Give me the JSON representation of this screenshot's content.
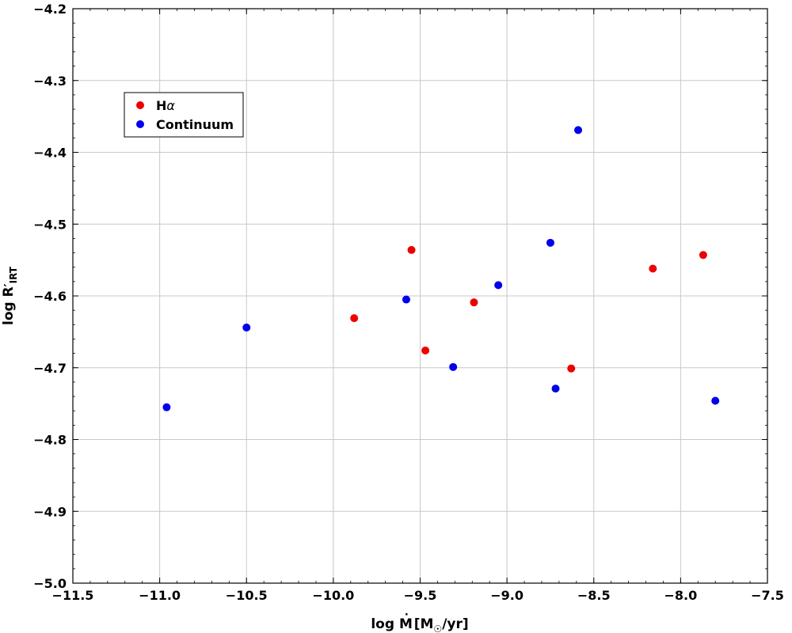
{
  "chart_data": {
    "type": "scatter",
    "xlabel": "log Ṁ [M☉/yr]",
    "ylabel": "log R′IRT",
    "xlim": [
      -11.5,
      -7.5
    ],
    "ylim": [
      -5.0,
      -4.2
    ],
    "xticks": [
      -11.5,
      -11.0,
      -10.5,
      -10.0,
      -9.5,
      -9.0,
      -8.5,
      -8.0,
      -7.5
    ],
    "yticks": [
      -5.0,
      -4.9,
      -4.8,
      -4.7,
      -4.6,
      -4.5,
      -4.4,
      -4.3,
      -4.2
    ],
    "grid": true,
    "legend_position": "top-left",
    "series": [
      {
        "name": "Hα",
        "color": "#ee0000",
        "points": [
          {
            "x": -9.88,
            "y": -4.631
          },
          {
            "x": -9.55,
            "y": -4.536
          },
          {
            "x": -9.47,
            "y": -4.676
          },
          {
            "x": -9.19,
            "y": -4.609
          },
          {
            "x": -8.63,
            "y": -4.701
          },
          {
            "x": -8.16,
            "y": -4.562
          },
          {
            "x": -7.87,
            "y": -4.543
          }
        ]
      },
      {
        "name": "Continuum",
        "color": "#0000ee",
        "points": [
          {
            "x": -10.96,
            "y": -4.755
          },
          {
            "x": -10.5,
            "y": -4.644
          },
          {
            "x": -9.58,
            "y": -4.605
          },
          {
            "x": -9.31,
            "y": -4.699
          },
          {
            "x": -9.05,
            "y": -4.585
          },
          {
            "x": -8.75,
            "y": -4.526
          },
          {
            "x": -8.72,
            "y": -4.729
          },
          {
            "x": -8.59,
            "y": -4.369
          },
          {
            "x": -7.8,
            "y": -4.746
          }
        ]
      }
    ]
  }
}
